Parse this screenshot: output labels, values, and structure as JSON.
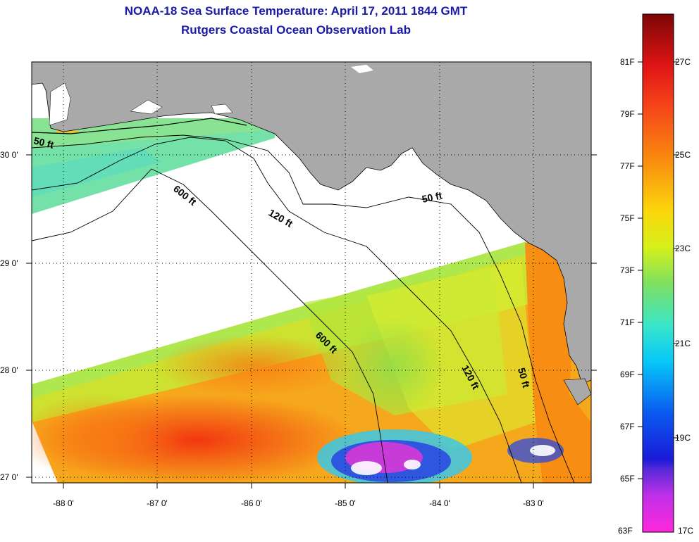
{
  "title": {
    "line1": "NOAA-18 Sea Surface Temperature:  April 17, 2011 1844 GMT",
    "line2": "Rutgers Coastal Ocean Observation Lab"
  },
  "axes": {
    "lon_labels": [
      "-88 0'",
      "-87 0'",
      "-86 0'",
      "-85 0'",
      "-84 0'",
      "-83 0'"
    ],
    "lat_labels": [
      "30 0'",
      "29 0'",
      "28 0'",
      "27 0'"
    ]
  },
  "contours": {
    "depth_labels": [
      "50 ft",
      "600 ft",
      "120 ft",
      "50 ft",
      "600 ft",
      "120 ft",
      "50 ft"
    ]
  },
  "colorbar": {
    "f_labels": [
      "81F",
      "79F",
      "77F",
      "75F",
      "73F",
      "71F",
      "69F",
      "67F",
      "65F",
      "63F"
    ],
    "c_labels": [
      "27C",
      "25C",
      "23C",
      "21C",
      "19C",
      "17C"
    ]
  },
  "colors": {
    "title": "#1a1aa8",
    "land": "#a9a9a9",
    "no_data": "#ffffff"
  }
}
